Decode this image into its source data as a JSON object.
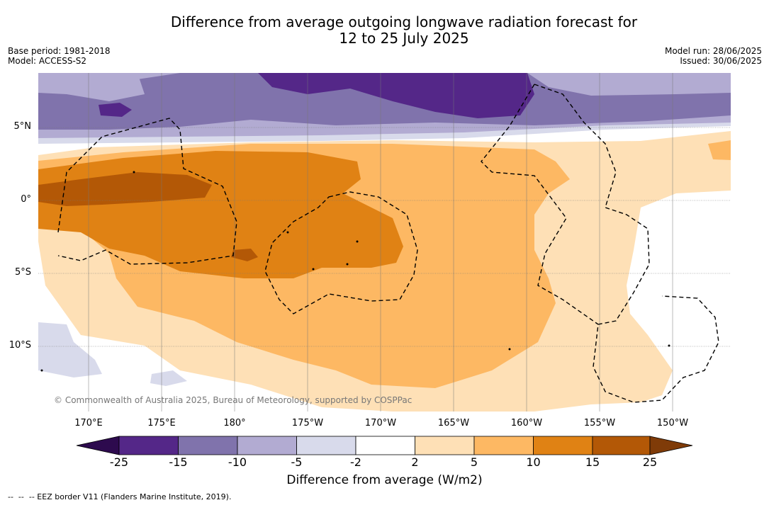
{
  "title_line1": "Difference from average outgoing longwave radiation forecast for",
  "title_line2": "12 to 25 July 2025",
  "meta": {
    "base_period": "Base period: 1981-2018",
    "model": "Model: ACCESS-S2",
    "model_run": "Model run: 28/06/2025",
    "issued": "Issued: 30/06/2025"
  },
  "copyright": "© Commonwealth of Australia 2025, Bureau of Meteorology, supported by COSPPac",
  "footnote": "--  --  -- EEZ border V11 (Flanders Marine Institute, 2019).",
  "chart_data": {
    "type": "heatmap",
    "title": "Difference from average outgoing longwave radiation forecast for 12 to 25 July 2025",
    "lat_ticks": [
      "5°N",
      "0°",
      "5°S",
      "10°S"
    ],
    "lon_ticks": [
      "170°E",
      "175°E",
      "180°",
      "175°W",
      "170°W",
      "165°W",
      "160°W",
      "155°W",
      "150°W"
    ],
    "colorbar": {
      "label": "Difference from average (W/m2)",
      "tick_labels": [
        "-25",
        "-15",
        "-10",
        "-5",
        "-2",
        "2",
        "5",
        "10",
        "15",
        "25"
      ],
      "extend": "both",
      "colors": {
        "under": "#2d0a4e",
        "b_-25_-15": "#542788",
        "b_-15_-10": "#8073ac",
        "b_-10_-5": "#b2abd2",
        "b_-5_-2": "#d8daeb",
        "b_-2_2": "#ffffff",
        "b_2_5": "#fee0b6",
        "b_5_10": "#fdb863",
        "b_10_15": "#e08214",
        "b_15_25": "#b35806",
        "over": "#7f3b08"
      }
    },
    "regions": [
      {
        "band": "-25 to -15",
        "location": "north of 5°N near 170°W to 165°W"
      },
      {
        "band": "15 to 25",
        "location": "near equator west of 175°E"
      },
      {
        "band": "10 to 15",
        "location": "equator to 5°S, 170°E to 170°W"
      },
      {
        "band": "5 to 10",
        "location": "4°N to 12°S, 170°E to 160°W"
      },
      {
        "band": "2 to 5",
        "location": "south and east fringes toward 155°W"
      }
    ],
    "grid": true
  }
}
